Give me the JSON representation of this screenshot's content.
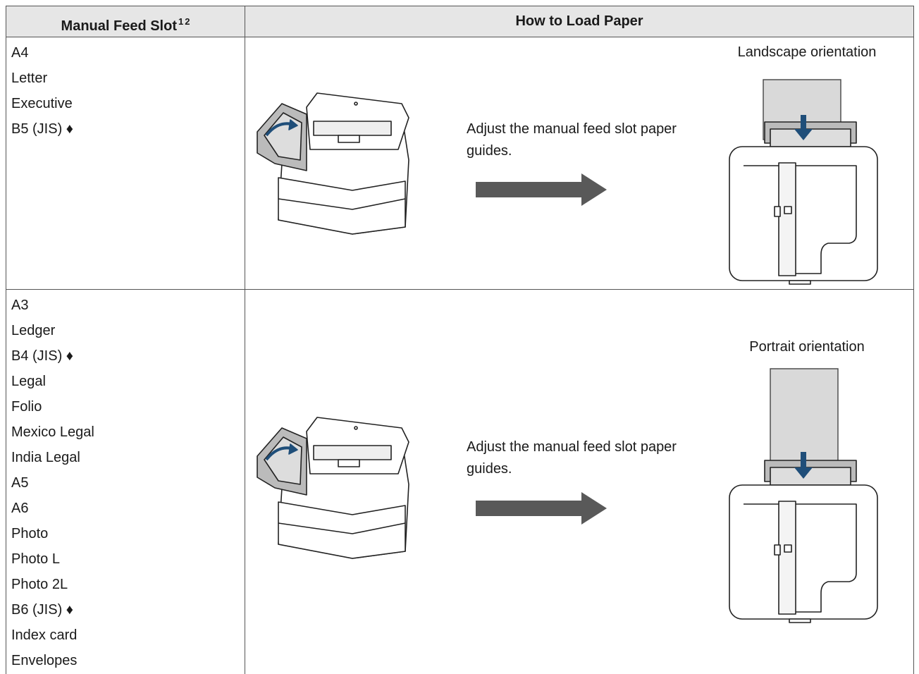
{
  "table": {
    "headers": [
      {
        "text": "Manual Feed Slot",
        "superscripts": [
          "1",
          "2"
        ]
      },
      {
        "text": "How to Load Paper"
      }
    ],
    "rows": [
      {
        "sizes": [
          "A4",
          "Letter",
          "Executive",
          "B5 (JIS) ♦"
        ],
        "instruction": "Adjust the manual feed slot paper guides.",
        "orientation": "Landscape orientation"
      },
      {
        "sizes": [
          "A3",
          "Ledger",
          "B4 (JIS) ♦",
          "Legal",
          "Folio",
          "Mexico Legal",
          "India Legal",
          "A5",
          "A6",
          "Photo",
          "Photo L",
          "Photo 2L",
          "B6 (JIS) ♦",
          "Index card",
          "Envelopes"
        ],
        "instruction": "Adjust the manual feed slot paper guides.",
        "orientation": "Portrait orientation"
      }
    ]
  }
}
